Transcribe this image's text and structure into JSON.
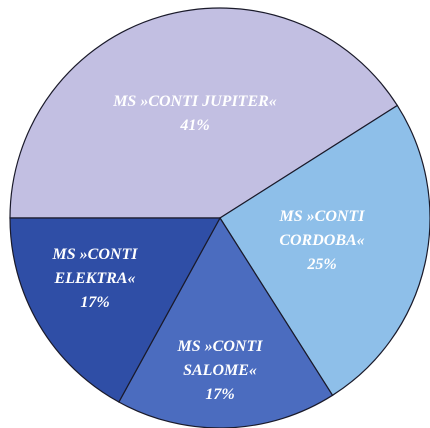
{
  "chart_data": {
    "type": "pie",
    "categories": [
      "MS »CONTI JUPITER«",
      "MS »CONTI CORDOBA«",
      "MS »CONTI SALOME«",
      "MS »CONTI ELEKTRA«"
    ],
    "values": [
      41,
      25,
      17,
      17
    ],
    "value_labels": [
      "41%",
      "25%",
      "17%",
      "17%"
    ],
    "colors": [
      "#c2bfe2",
      "#8ebfe9",
      "#4b6cbf",
      "#2f4ea6"
    ]
  }
}
